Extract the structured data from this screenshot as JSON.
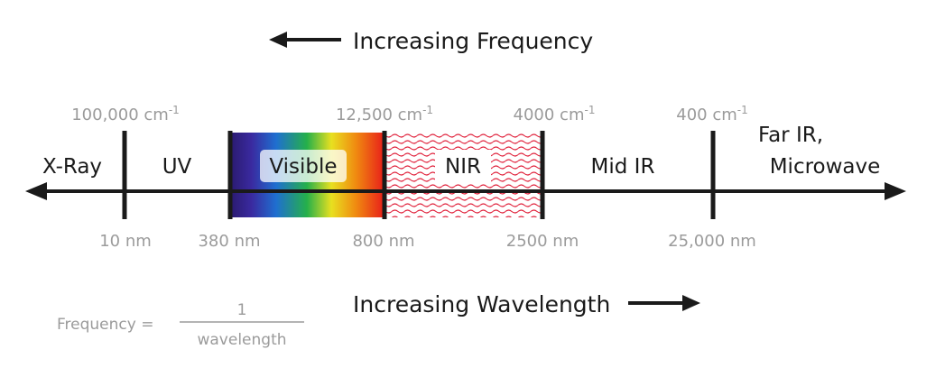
{
  "headers": {
    "frequency": "Increasing Frequency",
    "wavelength": "Increasing Wavelength"
  },
  "regions": {
    "xray": "X-Ray",
    "uv": "UV",
    "visible": "Visible",
    "nir": "NIR",
    "midir": "Mid IR",
    "farir_line1": "Far IR,",
    "farir_line2": "Microwave"
  },
  "wavenumbers": [
    {
      "value": "100,000 cm",
      "exp": "-1"
    },
    {
      "value": "12,500 cm",
      "exp": "-1"
    },
    {
      "value": "4000 cm",
      "exp": "-1"
    },
    {
      "value": "400 cm",
      "exp": "-1"
    }
  ],
  "wavelengths": [
    "10 nm",
    "380 nm",
    "800 nm",
    "2500 nm",
    "25,000 nm"
  ],
  "formula": {
    "lhs": "Frequency =",
    "numerator": "1",
    "denominator": "wavelength"
  },
  "colors": {
    "axis": "#1a1a1a",
    "label_gray": "#9b9b9b",
    "nir_hatch": "#e0203a",
    "visible_gradient": [
      "#2a1a6e",
      "#3a2aa0",
      "#1f6fd0",
      "#25b04a",
      "#e8e020",
      "#f08a10",
      "#e8201a"
    ]
  }
}
